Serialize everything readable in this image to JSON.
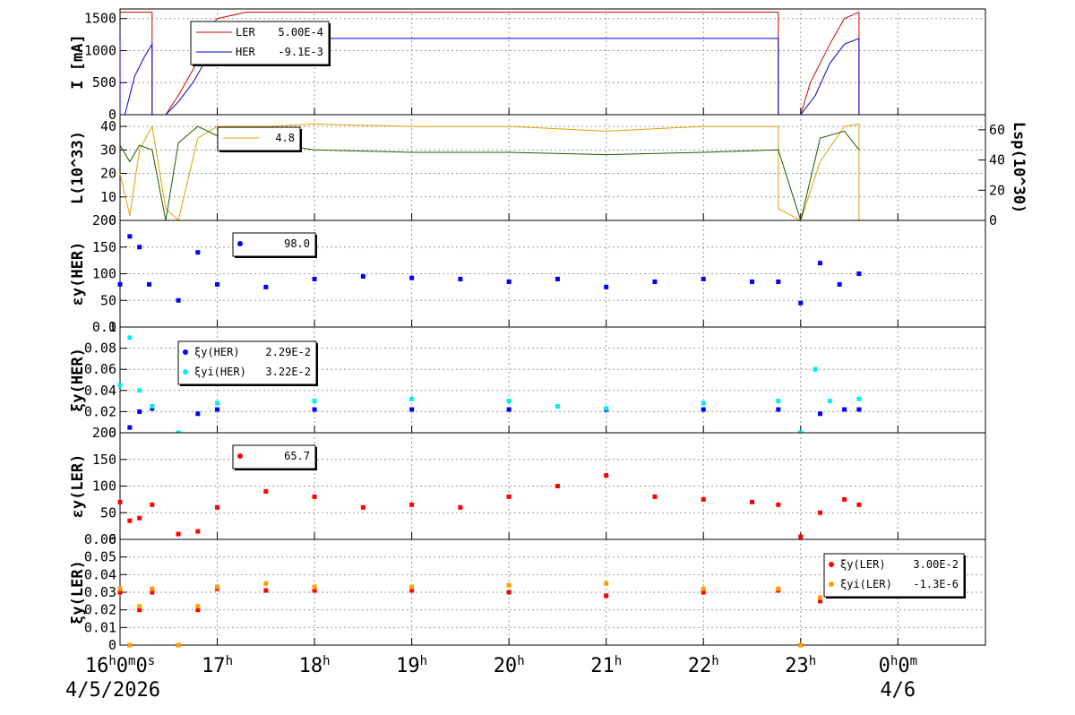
{
  "chart_data": [
    {
      "type": "line",
      "ylabel": "I [mA]",
      "ylim": [
        0,
        1650
      ],
      "yticks": [
        "0",
        "500",
        "1000",
        "1500"
      ],
      "legend": [
        {
          "label": "LER",
          "value": "5.00E-4",
          "color": "#d80000"
        },
        {
          "label": "HER",
          "value": "-9.1E-3",
          "color": "#0000d8"
        }
      ],
      "series": [
        {
          "name": "LER",
          "color": "#d80000",
          "points": [
            [
              16.0,
              1600
            ],
            [
              16.33,
              1600
            ],
            [
              16.33,
              0
            ],
            [
              16.47,
              0
            ],
            [
              16.6,
              300
            ],
            [
              16.75,
              700
            ],
            [
              16.9,
              1300
            ],
            [
              17.0,
              1500
            ],
            [
              17.3,
              1600
            ],
            [
              22.77,
              1600
            ],
            [
              22.77,
              0
            ],
            [
              23.0,
              0
            ],
            [
              23.1,
              500
            ],
            [
              23.3,
              1100
            ],
            [
              23.45,
              1500
            ],
            [
              23.6,
              1600
            ],
            [
              23.6,
              0
            ],
            [
              24.9,
              0
            ]
          ]
        },
        {
          "name": "HER",
          "color": "#0000d8",
          "points": [
            [
              16.0,
              1200
            ],
            [
              16.0,
              0
            ],
            [
              16.05,
              0
            ],
            [
              16.15,
              600
            ],
            [
              16.25,
              900
            ],
            [
              16.33,
              1100
            ],
            [
              16.33,
              0
            ],
            [
              16.47,
              0
            ],
            [
              16.6,
              200
            ],
            [
              16.75,
              500
            ],
            [
              16.9,
              900
            ],
            [
              17.0,
              1100
            ],
            [
              17.2,
              1190
            ],
            [
              22.77,
              1190
            ],
            [
              22.77,
              0
            ],
            [
              23.0,
              0
            ],
            [
              23.15,
              300
            ],
            [
              23.3,
              800
            ],
            [
              23.45,
              1100
            ],
            [
              23.6,
              1190
            ],
            [
              23.6,
              0
            ],
            [
              24.9,
              0
            ]
          ]
        }
      ]
    },
    {
      "type": "line",
      "ylabel": "L(10^33)",
      "ylim": [
        0,
        45
      ],
      "yticks": [
        "0",
        "10",
        "20",
        "30",
        "40"
      ],
      "y2label": "Lsp(10^30)",
      "y2ticks": [
        "0",
        "20",
        "40",
        "60"
      ],
      "legend": [
        {
          "label": "",
          "value": "4.8",
          "color": "#e0a000"
        }
      ],
      "series": [
        {
          "name": "L",
          "color": "#e0a000",
          "points": [
            [
              16.0,
              20
            ],
            [
              16.1,
              2
            ],
            [
              16.2,
              30
            ],
            [
              16.33,
              40
            ],
            [
              16.47,
              5
            ],
            [
              16.6,
              0
            ],
            [
              16.8,
              35
            ],
            [
              17.0,
              40
            ],
            [
              17.5,
              40
            ],
            [
              18.0,
              41
            ],
            [
              19.0,
              40
            ],
            [
              20.0,
              40
            ],
            [
              21.0,
              38
            ],
            [
              22.0,
              40
            ],
            [
              22.77,
              40
            ],
            [
              22.77,
              5
            ],
            [
              23.0,
              0
            ],
            [
              23.2,
              25
            ],
            [
              23.45,
              40
            ],
            [
              23.6,
              41
            ],
            [
              23.6,
              0
            ]
          ]
        },
        {
          "name": "Lsp",
          "color": "#1a5c00",
          "points": [
            [
              16.0,
              32
            ],
            [
              16.1,
              25
            ],
            [
              16.2,
              32
            ],
            [
              16.33,
              30
            ],
            [
              16.47,
              0
            ],
            [
              16.6,
              33
            ],
            [
              16.8,
              40
            ],
            [
              17.0,
              36
            ],
            [
              17.5,
              33
            ],
            [
              18.0,
              30
            ],
            [
              19.0,
              29
            ],
            [
              20.0,
              29
            ],
            [
              21.0,
              28
            ],
            [
              22.0,
              29
            ],
            [
              22.77,
              30
            ],
            [
              23.0,
              0
            ],
            [
              23.2,
              35
            ],
            [
              23.45,
              38
            ],
            [
              23.6,
              30
            ]
          ]
        }
      ]
    },
    {
      "type": "scatter",
      "ylabel": "εy(HER)",
      "ylim": [
        0,
        200
      ],
      "yticks": [
        "0",
        "50",
        "100",
        "150",
        "200"
      ],
      "legend": [
        {
          "label": "",
          "value": "98.0",
          "color": "#0000ff"
        }
      ],
      "series": [
        {
          "name": "",
          "color": "#0000ff",
          "points": [
            [
              16.0,
              80
            ],
            [
              16.1,
              170
            ],
            [
              16.2,
              150
            ],
            [
              16.3,
              80
            ],
            [
              16.6,
              50
            ],
            [
              16.8,
              140
            ],
            [
              17.0,
              80
            ],
            [
              17.5,
              75
            ],
            [
              18.0,
              90
            ],
            [
              18.5,
              95
            ],
            [
              19.0,
              92
            ],
            [
              19.5,
              90
            ],
            [
              20.0,
              85
            ],
            [
              20.5,
              90
            ],
            [
              21.0,
              75
            ],
            [
              21.5,
              85
            ],
            [
              22.0,
              90
            ],
            [
              22.5,
              85
            ],
            [
              22.77,
              85
            ],
            [
              23.0,
              45
            ],
            [
              23.2,
              120
            ],
            [
              23.4,
              80
            ],
            [
              23.6,
              100
            ]
          ]
        }
      ]
    },
    {
      "type": "scatter",
      "ylabel": "ξy(HER)",
      "ylim": [
        0,
        0.1
      ],
      "yticks": [
        "0",
        "0.02",
        "0.04",
        "0.06",
        "0.08",
        "0.1"
      ],
      "legend": [
        {
          "label": "ξy(HER)",
          "value": "2.29E-2",
          "color": "#0000ff"
        },
        {
          "label": "ξyi(HER)",
          "value": "3.22E-2",
          "color": "#00f0f0"
        }
      ],
      "series": [
        {
          "name": "ξy(HER)",
          "color": "#0000ff",
          "points": [
            [
              16.1,
              0.005
            ],
            [
              16.2,
              0.02
            ],
            [
              16.33,
              0.023
            ],
            [
              16.6,
              0.0
            ],
            [
              16.8,
              0.018
            ],
            [
              17.0,
              0.022
            ],
            [
              18.0,
              0.022
            ],
            [
              19.0,
              0.022
            ],
            [
              20.0,
              0.022
            ],
            [
              21.0,
              0.022
            ],
            [
              22.0,
              0.022
            ],
            [
              22.77,
              0.022
            ],
            [
              23.0,
              0.0
            ],
            [
              23.2,
              0.018
            ],
            [
              23.45,
              0.022
            ],
            [
              23.6,
              0.022
            ]
          ]
        },
        {
          "name": "ξyi(HER)",
          "color": "#00f0f0",
          "points": [
            [
              16.0,
              0.045
            ],
            [
              16.1,
              0.09
            ],
            [
              16.2,
              0.04
            ],
            [
              16.33,
              0.025
            ],
            [
              16.6,
              0.0
            ],
            [
              16.8,
              0.06
            ],
            [
              17.0,
              0.028
            ],
            [
              18.0,
              0.03
            ],
            [
              19.0,
              0.032
            ],
            [
              20.0,
              0.03
            ],
            [
              20.5,
              0.025
            ],
            [
              21.0,
              0.023
            ],
            [
              22.0,
              0.028
            ],
            [
              22.77,
              0.03
            ],
            [
              23.0,
              0.0
            ],
            [
              23.15,
              0.06
            ],
            [
              23.3,
              0.03
            ],
            [
              23.6,
              0.032
            ]
          ]
        }
      ]
    },
    {
      "type": "scatter",
      "ylabel": "εy(LER)",
      "ylim": [
        0,
        200
      ],
      "yticks": [
        "0",
        "50",
        "100",
        "150",
        "200"
      ],
      "legend": [
        {
          "label": "",
          "value": "65.7",
          "color": "#ff0000"
        }
      ],
      "series": [
        {
          "name": "",
          "color": "#ff0000",
          "points": [
            [
              16.0,
              70
            ],
            [
              16.1,
              35
            ],
            [
              16.2,
              40
            ],
            [
              16.33,
              65
            ],
            [
              16.6,
              10
            ],
            [
              16.8,
              15
            ],
            [
              17.0,
              60
            ],
            [
              17.5,
              90
            ],
            [
              18.0,
              80
            ],
            [
              18.5,
              60
            ],
            [
              19.0,
              65
            ],
            [
              19.5,
              60
            ],
            [
              20.0,
              80
            ],
            [
              20.5,
              100
            ],
            [
              21.0,
              120
            ],
            [
              21.5,
              80
            ],
            [
              22.0,
              75
            ],
            [
              22.5,
              70
            ],
            [
              22.77,
              65
            ],
            [
              23.0,
              5
            ],
            [
              23.2,
              50
            ],
            [
              23.45,
              75
            ],
            [
              23.6,
              65
            ]
          ]
        }
      ]
    },
    {
      "type": "scatter",
      "ylabel": "ξy(LER)",
      "ylim": [
        0,
        0.06
      ],
      "yticks": [
        "0",
        "0.01",
        "0.02",
        "0.03",
        "0.04",
        "0.05",
        "0.06"
      ],
      "legend": [
        {
          "label": "ξy(LER)",
          "value": "3.00E-2",
          "color": "#ff0000"
        },
        {
          "label": "ξyi(LER)",
          "value": "-1.3E-6",
          "color": "#ffa000"
        }
      ],
      "series": [
        {
          "name": "ξy(LER)",
          "color": "#ff0000",
          "points": [
            [
              16.0,
              0.03
            ],
            [
              16.1,
              0.0
            ],
            [
              16.2,
              0.02
            ],
            [
              16.33,
              0.03
            ],
            [
              16.6,
              0.0
            ],
            [
              16.8,
              0.02
            ],
            [
              17.0,
              0.032
            ],
            [
              17.5,
              0.031
            ],
            [
              18.0,
              0.031
            ],
            [
              19.0,
              0.031
            ],
            [
              20.0,
              0.03
            ],
            [
              21.0,
              0.028
            ],
            [
              22.0,
              0.03
            ],
            [
              22.77,
              0.031
            ],
            [
              23.0,
              0.0
            ],
            [
              23.2,
              0.025
            ],
            [
              23.45,
              0.03
            ],
            [
              23.6,
              0.03
            ]
          ]
        },
        {
          "name": "ξyi(LER)",
          "color": "#ffa000",
          "points": [
            [
              16.0,
              0.032
            ],
            [
              16.1,
              0.0
            ],
            [
              16.2,
              0.022
            ],
            [
              16.33,
              0.032
            ],
            [
              16.6,
              0.0
            ],
            [
              16.8,
              0.022
            ],
            [
              17.0,
              0.033
            ],
            [
              17.5,
              0.035
            ],
            [
              18.0,
              0.033
            ],
            [
              19.0,
              0.033
            ],
            [
              20.0,
              0.034
            ],
            [
              21.0,
              0.035
            ],
            [
              22.0,
              0.032
            ],
            [
              22.77,
              0.032
            ],
            [
              23.0,
              0.0
            ],
            [
              23.2,
              0.027
            ],
            [
              23.45,
              0.034
            ],
            [
              23.6,
              0.032
            ]
          ]
        }
      ]
    }
  ],
  "x_axis": {
    "range_hours": [
      16.0,
      24.9
    ],
    "ticks": [
      {
        "h": 16,
        "main": "16",
        "sup": "h",
        "rest": "0",
        "sup2": "m",
        "rest2": "0",
        "sup3": "s"
      },
      {
        "h": 17,
        "main": "17",
        "sup": "h"
      },
      {
        "h": 18,
        "main": "18",
        "sup": "h"
      },
      {
        "h": 19,
        "main": "19",
        "sup": "h"
      },
      {
        "h": 20,
        "main": "20",
        "sup": "h"
      },
      {
        "h": 21,
        "main": "21",
        "sup": "h"
      },
      {
        "h": 22,
        "main": "22",
        "sup": "h"
      },
      {
        "h": 23,
        "main": "23",
        "sup": "h"
      },
      {
        "h": 24,
        "main": "0",
        "sup": "h",
        "rest": "0",
        "sup2": "m"
      }
    ],
    "dates": [
      {
        "h": 16,
        "label": "4/5/2026"
      },
      {
        "h": 24,
        "label": "4/6"
      }
    ]
  }
}
